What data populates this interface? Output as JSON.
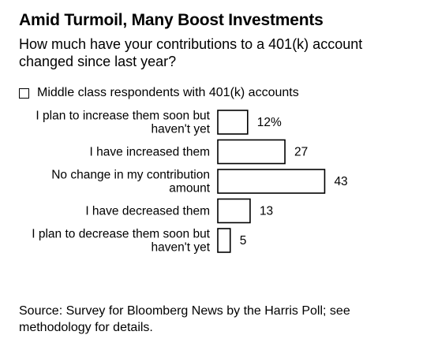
{
  "title": "Amid Turmoil, Many Boost Investments",
  "subtitle": "How much have your contributions to a 401(k) account changed since last year?",
  "legend": {
    "label": "Middle class respondents with 401(k) accounts",
    "placement": "top-left"
  },
  "source": "Source: Survey for Bloomberg News by the Harris Poll; see methodology for details.",
  "chart_data": {
    "type": "bar",
    "orientation": "horizontal",
    "categories": [
      [
        "I plan to increase them soon but",
        "haven't yet"
      ],
      [
        "I have increased them"
      ],
      [
        "No change in my contribution",
        "amount"
      ],
      [
        "I have decreased them"
      ],
      [
        "I plan to decrease them soon but",
        "haven't yet"
      ]
    ],
    "series": [
      {
        "name": "Middle class respondents with 401(k) accounts",
        "values": [
          12,
          27,
          43,
          13,
          5
        ]
      }
    ],
    "value_labels": [
      "12%",
      "27",
      "43",
      "13",
      "5"
    ],
    "unit": "%",
    "xlim": [
      0,
      43
    ],
    "grid": false,
    "colors": {
      "bar_fill": "#ffffff",
      "bar_stroke": "#000000"
    }
  }
}
